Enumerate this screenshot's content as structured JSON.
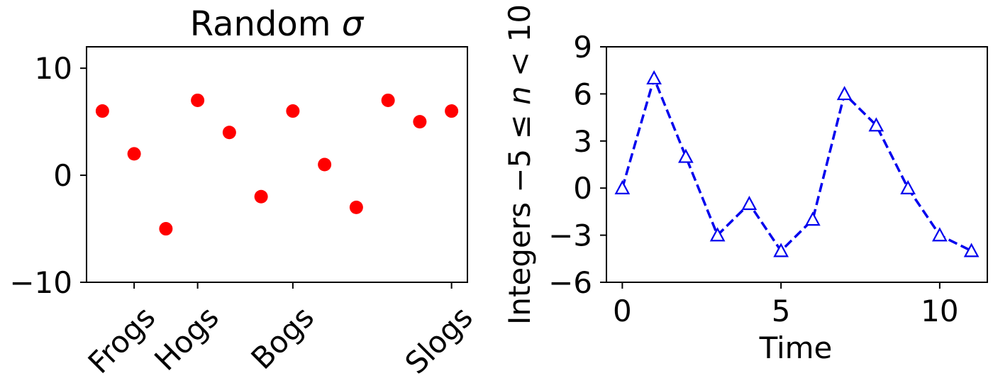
{
  "charts": [
    {
      "type": "scatter",
      "title": "Random σ",
      "title_main": "Random ",
      "title_symbol": "σ",
      "xlabel": "",
      "ylabel": "",
      "x": [
        0,
        1,
        2,
        3,
        4,
        5,
        6,
        7,
        8,
        9,
        10,
        11
      ],
      "y": [
        6,
        2,
        -5,
        7,
        4,
        -2,
        6,
        1,
        -3,
        7,
        5,
        6
      ],
      "xlim": [
        -0.5,
        11.5
      ],
      "ylim": [
        -10,
        12
      ],
      "yticks": [
        -10,
        0,
        10
      ],
      "ytick_labels": [
        "−10",
        "0",
        "10"
      ],
      "xticks": [
        1,
        3,
        6,
        11
      ],
      "xtick_labels": [
        "Frogs",
        "Hogs",
        "Bogs",
        "Slogs"
      ],
      "marker": "circle",
      "color": "#ff0000",
      "grid": false
    },
    {
      "type": "line",
      "title": "",
      "xlabel": "Time",
      "ylabel": "Integers −5 ≤ n < 10",
      "ylabel_parts": {
        "before": "Integers −5 ≤ ",
        "var": "n",
        "after": " < 10"
      },
      "x": [
        0,
        1,
        2,
        3,
        4,
        5,
        6,
        7,
        8,
        9,
        10,
        11
      ],
      "y": [
        0,
        7,
        2,
        -3,
        -1,
        -4,
        -2,
        6,
        4,
        0,
        -3,
        -4
      ],
      "xlim": [
        -0.5,
        11.5
      ],
      "ylim": [
        -6,
        9
      ],
      "xticks": [
        0,
        5,
        10
      ],
      "xtick_labels": [
        "0",
        "5",
        "10"
      ],
      "yticks": [
        -6,
        -3,
        0,
        3,
        6,
        9
      ],
      "ytick_labels": [
        "−6",
        "−3",
        "0",
        "3",
        "6",
        "9"
      ],
      "marker": "triangle-open",
      "linestyle": "dashed",
      "color": "#0000ee",
      "grid": false
    }
  ]
}
